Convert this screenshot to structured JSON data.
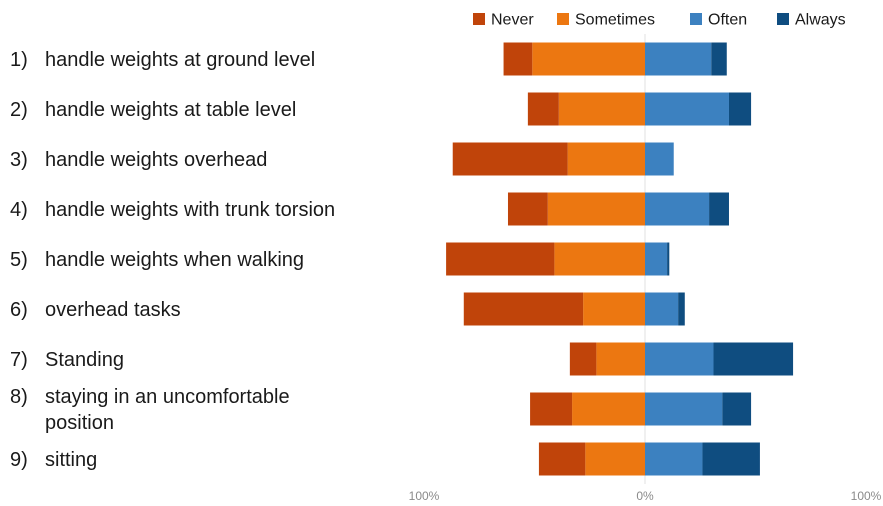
{
  "chart_data": {
    "type": "bar",
    "orientation": "horizontal",
    "stacking": "diverging",
    "categories": [
      [
        "1)",
        "handle weights at ground level"
      ],
      [
        "2)",
        "handle weights at table level"
      ],
      [
        "3)",
        "handle weights overhead"
      ],
      [
        "4)",
        "handle weights with trunk torsion"
      ],
      [
        "5)",
        "handle weights when walking"
      ],
      [
        "6)",
        "overhead tasks"
      ],
      [
        "7)",
        "Standing"
      ],
      [
        "8)",
        "staying in an uncomfortable position"
      ],
      [
        "9)",
        "sitting"
      ]
    ],
    "category_lines": [
      [
        "handle weights at ground level"
      ],
      [
        "handle weights at table level"
      ],
      [
        "handle weights overhead"
      ],
      [
        "handle weights with trunk torsion"
      ],
      [
        "handle weights when walking"
      ],
      [
        "overhead tasks"
      ],
      [
        "Standing"
      ],
      [
        "staying in an uncomfortable",
        "position"
      ],
      [
        "sitting"
      ]
    ],
    "series": [
      {
        "name": "Never",
        "side": "left",
        "color": "#c0440a",
        "values": [
          13,
          14,
          52,
          18,
          49,
          54,
          12,
          19,
          21
        ]
      },
      {
        "name": "Sometimes",
        "side": "left",
        "color": "#ec7711",
        "values": [
          51,
          39,
          35,
          44,
          41,
          28,
          22,
          33,
          27
        ]
      },
      {
        "name": "Often",
        "side": "right",
        "color": "#3c81c0",
        "values": [
          30,
          38,
          13,
          29,
          10,
          15,
          31,
          35,
          26
        ]
      },
      {
        "name": "Always",
        "side": "right",
        "color": "#0f4d80",
        "values": [
          7,
          10,
          0,
          9,
          1,
          3,
          36,
          13,
          26
        ]
      }
    ],
    "xaxis": {
      "ticks": [
        "100%",
        "0%",
        "100%"
      ],
      "range": [
        -100,
        100
      ]
    },
    "legend": {
      "position": "top-right"
    },
    "grid": false
  }
}
